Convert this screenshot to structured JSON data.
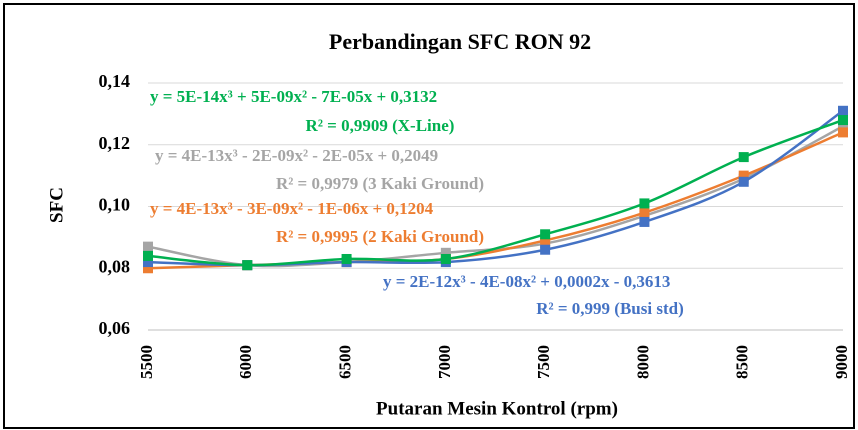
{
  "chart_data": {
    "type": "line",
    "title": "Perbandingan  SFC RON 92",
    "x_label": "Putaran Mesin Kontrol (rpm)",
    "y_label": "SFC",
    "x": [
      5500,
      6000,
      6500,
      7000,
      7500,
      8000,
      8500,
      9000
    ],
    "xlim": [
      5500,
      9000
    ],
    "xticks": [
      5500,
      6000,
      6500,
      7000,
      7500,
      8000,
      8500,
      9000
    ],
    "ylim": [
      0.06,
      0.14
    ],
    "yticks": [
      {
        "value": 0.06,
        "label": "0,06"
      },
      {
        "value": 0.08,
        "label": "0,08"
      },
      {
        "value": 0.1,
        "label": "0,10"
      },
      {
        "value": 0.12,
        "label": "0,12"
      },
      {
        "value": 0.14,
        "label": "0,14"
      }
    ],
    "grid": true,
    "series": [
      {
        "color": "#a5a5a5",
        "values": [
          0.087,
          0.081,
          0.082,
          0.085,
          0.088,
          0.097,
          0.109,
          0.126
        ]
      },
      {
        "color": "#ed7d31",
        "values": [
          0.08,
          0.081,
          0.082,
          0.083,
          0.089,
          0.098,
          0.11,
          0.124
        ]
      },
      {
        "color": "#4472c4",
        "values": [
          0.082,
          0.081,
          0.082,
          0.082,
          0.086,
          0.095,
          0.108,
          0.131
        ]
      },
      {
        "color": "#00b050",
        "values": [
          0.084,
          0.081,
          0.083,
          0.083,
          0.091,
          0.101,
          0.116,
          0.128
        ]
      }
    ],
    "annotations": [
      {
        "color": "#00b050",
        "lines": [
          "y = 5E-14x³ + 5E-09x² - 7E-05x + 0,3132",
          "R² = 0,9909 (X-Line)"
        ]
      },
      {
        "color": "#a5a5a5",
        "lines": [
          "y = 4E-13x³ - 2E-09x² - 2E-05x + 0,2049",
          "R² = 0,9979 (3 Kaki Ground)"
        ]
      },
      {
        "color": "#ed7d31",
        "lines": [
          "y = 4E-13x³ - 3E-09x² - 1E-06x + 0,1204",
          "R² = 0,9995 (2 Kaki Ground)"
        ]
      },
      {
        "color": "#4472c4",
        "lines": [
          "y = 2E-12x³ - 4E-08x² + 0,0002x - 0,3613",
          "R² = 0,999 (Busi std)"
        ]
      }
    ]
  }
}
